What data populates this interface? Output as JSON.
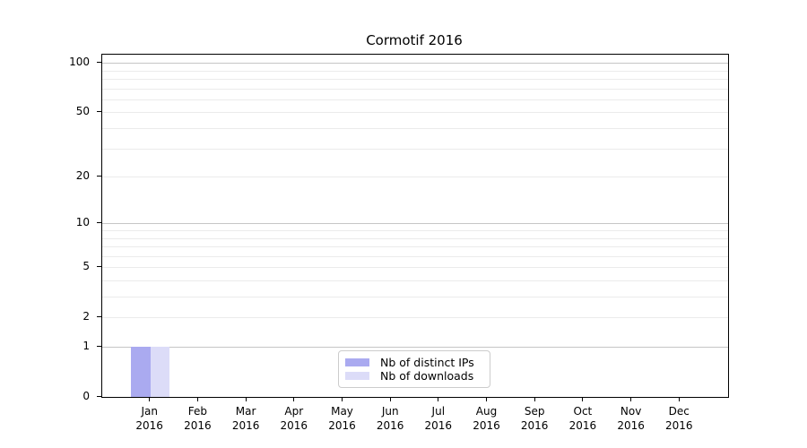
{
  "chart_data": {
    "type": "bar",
    "title": "Cormotif 2016",
    "xlabel": "",
    "ylabel": "",
    "yscale": "log1p",
    "ylim": [
      0,
      112
    ],
    "y_major_ticks": [
      0,
      1,
      2,
      5,
      10,
      20,
      50,
      100
    ],
    "gridlines": {
      "major": [
        1,
        10,
        100
      ],
      "minor": [
        2,
        3,
        4,
        5,
        6,
        7,
        8,
        9,
        20,
        30,
        40,
        50,
        60,
        70,
        80,
        90
      ]
    },
    "x_tick_labels": [
      {
        "month": "Jan",
        "year": "2016"
      },
      {
        "month": "Feb",
        "year": "2016"
      },
      {
        "month": "Mar",
        "year": "2016"
      },
      {
        "month": "Apr",
        "year": "2016"
      },
      {
        "month": "May",
        "year": "2016"
      },
      {
        "month": "Jun",
        "year": "2016"
      },
      {
        "month": "Jul",
        "year": "2016"
      },
      {
        "month": "Aug",
        "year": "2016"
      },
      {
        "month": "Sep",
        "year": "2016"
      },
      {
        "month": "Oct",
        "year": "2016"
      },
      {
        "month": "Nov",
        "year": "2016"
      },
      {
        "month": "Dec",
        "year": "2016"
      }
    ],
    "series": [
      {
        "name": "Nb of distinct IPs",
        "color": "#aaaaf0",
        "values": [
          1,
          0,
          0,
          0,
          0,
          0,
          0,
          0,
          0,
          0,
          0,
          0
        ]
      },
      {
        "name": "Nb of downloads",
        "color": "#dcdcf8",
        "values": [
          1,
          0,
          0,
          0,
          0,
          0,
          0,
          0,
          0,
          0,
          0,
          0
        ]
      }
    ],
    "legend": {
      "position": "lower center"
    },
    "colors": {
      "grid_major": "#c6c6c6",
      "grid_minor": "#ebebeb",
      "spine": "#000000",
      "background": "#ffffff"
    }
  }
}
